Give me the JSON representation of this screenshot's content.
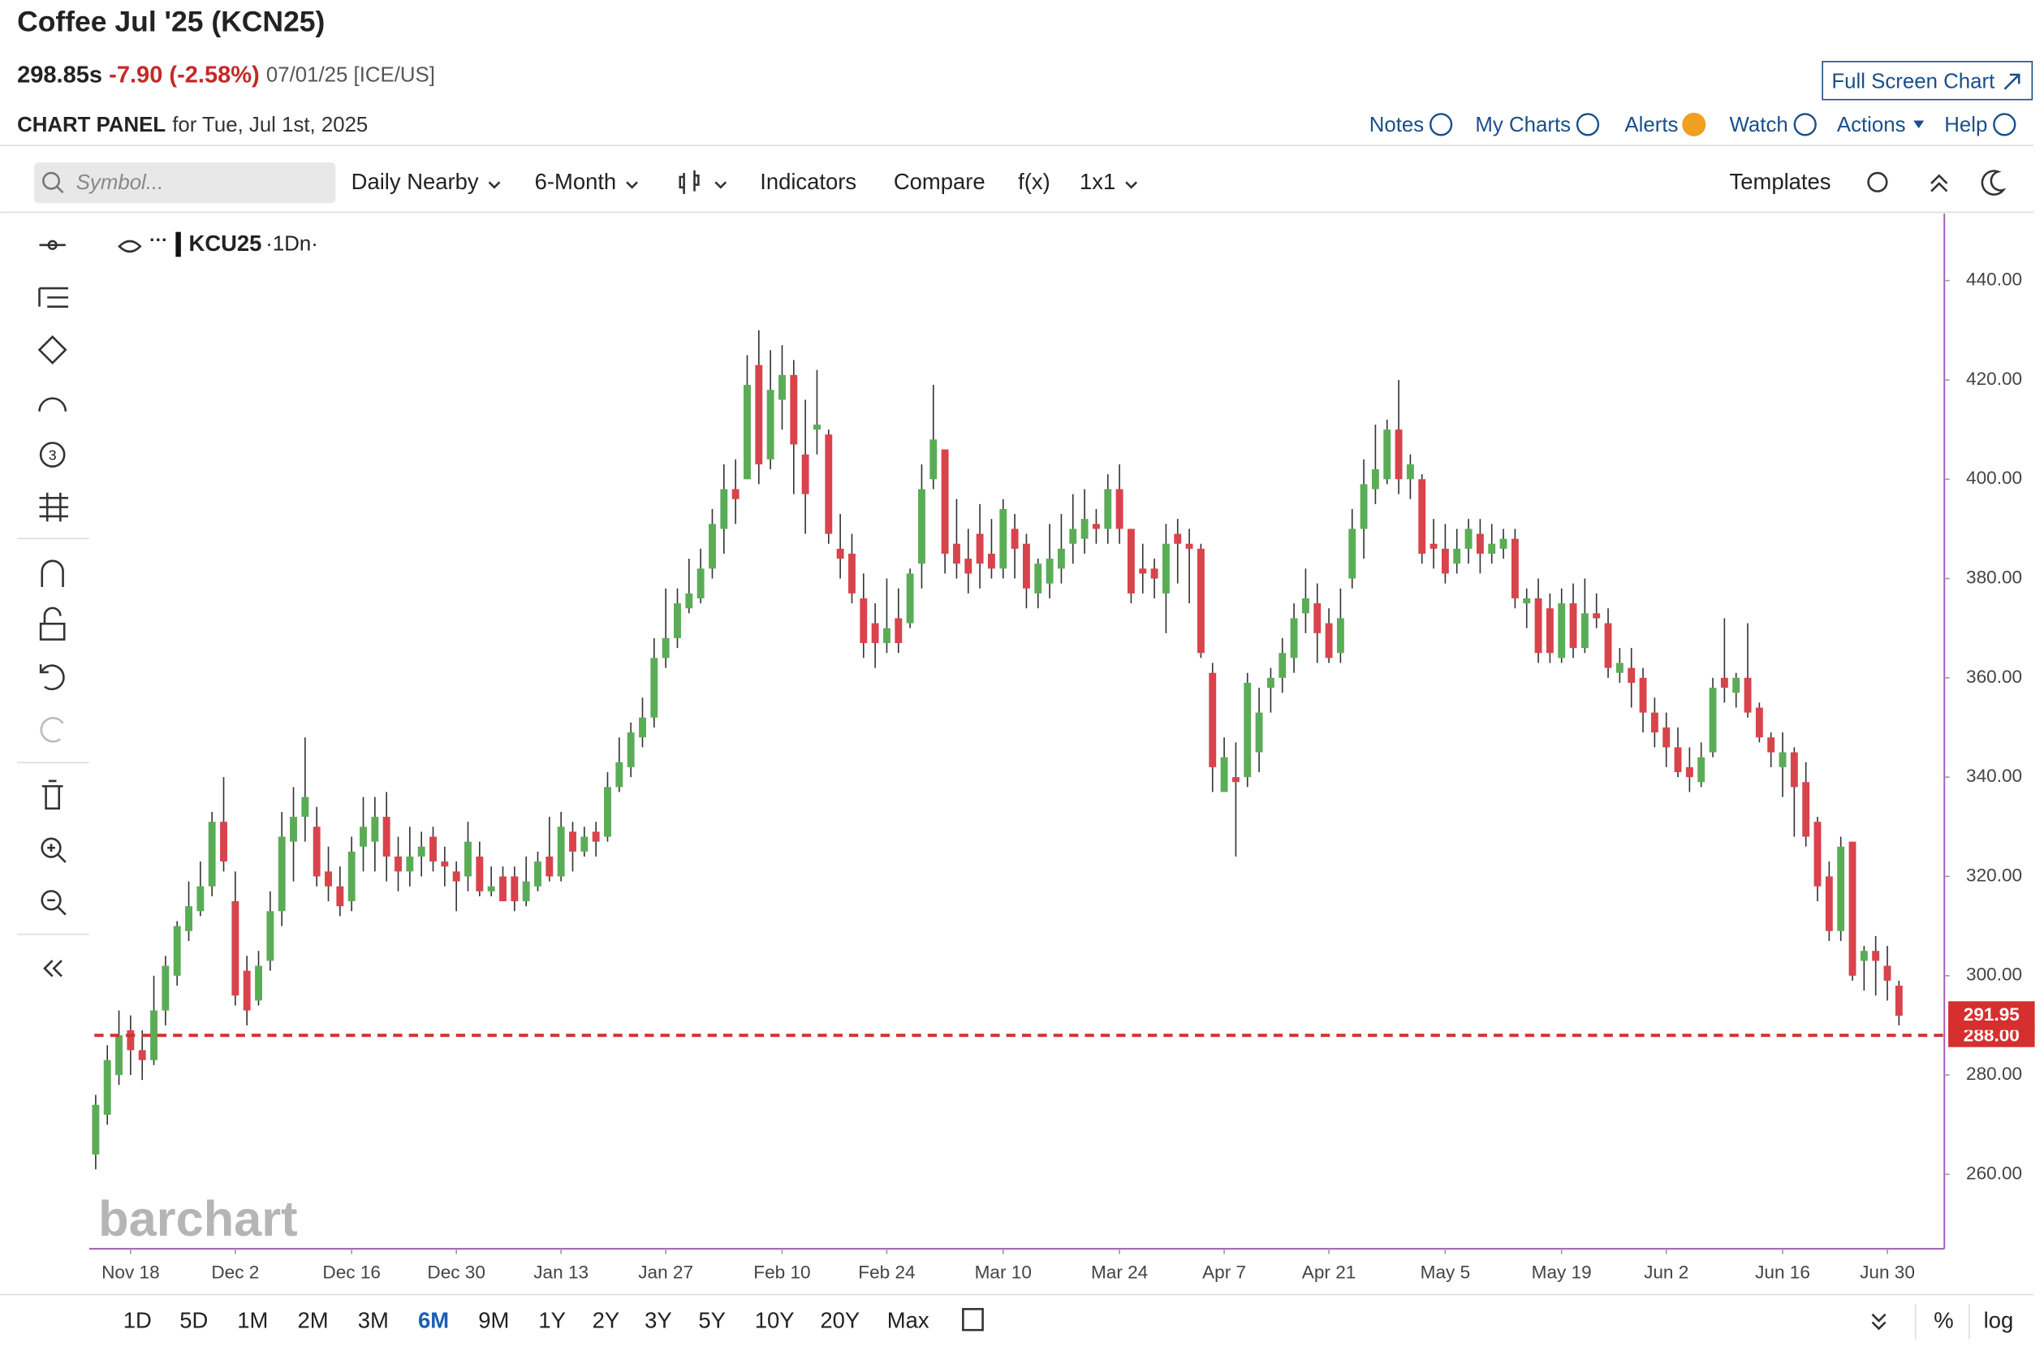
{
  "header": {
    "title": "Coffee Jul '25 (KCN25)",
    "price": "298.85s",
    "change": "-7.90 (-2.58%)",
    "date": "07/01/25 [ICE/US]",
    "panel_label": "CHART PANEL",
    "panel_for": "for Tue, Jul 1st, 2025",
    "full_screen": "Full Screen Chart"
  },
  "menu": [
    "Notes",
    "My Charts",
    "Alerts",
    "Watch",
    "Actions",
    "Help"
  ],
  "toolbar": {
    "symbol_placeholder": "Symbol...",
    "items": [
      "Daily Nearby",
      "6-Month",
      "Indicators",
      "Compare",
      "f(x)",
      "1x1"
    ],
    "templates": "Templates"
  },
  "legend": {
    "symbol": "KCU25",
    "interval": "·1Dn·"
  },
  "watermark": "barchart",
  "periods": [
    "1D",
    "5D",
    "1M",
    "2M",
    "3M",
    "6M",
    "9M",
    "1Y",
    "2Y",
    "3Y",
    "5Y",
    "10Y",
    "20Y",
    "Max"
  ],
  "active_period_index": 5,
  "bottom_right": [
    "%",
    "log"
  ],
  "chart_data": {
    "type": "candlestick",
    "up_color": "#5aad56",
    "down_color": "#d9434b",
    "price_line_color": "#d62f2f",
    "open": [
      264,
      272,
      280,
      289,
      285,
      283,
      293,
      300,
      309,
      313,
      318,
      331,
      315,
      301,
      295,
      303,
      313,
      327,
      332,
      330,
      321,
      318,
      315,
      326,
      327,
      332,
      324,
      321,
      324,
      328,
      323,
      321,
      320,
      324,
      317,
      320,
      320,
      315,
      318,
      324,
      320,
      329,
      325,
      329,
      328,
      338,
      342,
      348,
      352,
      364,
      368,
      374,
      376,
      382,
      390,
      398,
      400,
      423,
      404,
      416,
      421,
      405,
      410,
      409,
      386,
      385,
      376,
      371,
      367,
      372,
      371,
      383,
      400,
      406,
      387,
      384,
      389,
      385,
      382,
      390,
      387,
      377,
      379,
      382,
      387,
      388,
      391,
      390,
      398,
      390,
      382,
      382,
      377,
      389,
      387,
      386,
      361,
      337,
      340,
      340,
      345,
      358,
      360,
      364,
      373,
      375,
      371,
      365,
      380,
      390,
      398,
      400,
      410,
      400,
      400,
      387,
      386,
      383,
      386,
      389,
      385,
      386,
      388,
      375,
      376,
      374,
      364,
      375,
      366,
      373,
      371,
      361,
      362,
      360,
      353,
      350,
      346,
      342,
      339,
      345,
      360,
      357,
      360,
      354,
      348,
      342,
      345,
      339,
      331,
      320,
      309,
      327,
      303,
      305,
      302,
      298
    ],
    "high": [
      276,
      286,
      293,
      292,
      289,
      300,
      304,
      311,
      319,
      323,
      333,
      340,
      321,
      304,
      305,
      317,
      333,
      338,
      348,
      334,
      326,
      322,
      328,
      336,
      336,
      337,
      328,
      330,
      329,
      330,
      326,
      323,
      331,
      327,
      322,
      322,
      322,
      324,
      325,
      332,
      333,
      331,
      330,
      331,
      341,
      348,
      351,
      356,
      368,
      378,
      378,
      384,
      386,
      394,
      403,
      404,
      425,
      430,
      426,
      427,
      424,
      416,
      422,
      410,
      393,
      389,
      381,
      375,
      380,
      378,
      382,
      403,
      419,
      406,
      396,
      390,
      395,
      392,
      396,
      393,
      389,
      384,
      391,
      393,
      397,
      398,
      394,
      401,
      403,
      390,
      387,
      384,
      391,
      392,
      390,
      387,
      363,
      348,
      347,
      361,
      358,
      362,
      368,
      375,
      382,
      379,
      374,
      378,
      394,
      404,
      411,
      412,
      420,
      405,
      401,
      392,
      391,
      390,
      392,
      392,
      391,
      390,
      390,
      378,
      380,
      377,
      378,
      379,
      380,
      377,
      374,
      366,
      366,
      362,
      356,
      353,
      350,
      346,
      347,
      360,
      372,
      361,
      371,
      355,
      349,
      349,
      346,
      343,
      332,
      323,
      328,
      327,
      306,
      308,
      306,
      299
    ],
    "low": [
      261,
      270,
      278,
      280,
      279,
      282,
      290,
      298,
      307,
      312,
      316,
      321,
      294,
      290,
      294,
      301,
      310,
      319,
      327,
      318,
      315,
      312,
      313,
      321,
      321,
      319,
      317,
      318,
      320,
      321,
      318,
      313,
      317,
      316,
      316,
      315,
      313,
      314,
      317,
      319,
      319,
      321,
      324,
      324,
      327,
      337,
      340,
      346,
      350,
      362,
      366,
      373,
      375,
      380,
      385,
      391,
      400,
      399,
      402,
      410,
      397,
      389,
      405,
      387,
      380,
      375,
      364,
      362,
      365,
      365,
      370,
      378,
      398,
      381,
      380,
      377,
      378,
      380,
      380,
      380,
      374,
      374,
      376,
      379,
      383,
      385,
      387,
      387,
      387,
      375,
      377,
      376,
      369,
      379,
      375,
      364,
      337,
      337,
      324,
      338,
      341,
      353,
      357,
      361,
      369,
      363,
      363,
      363,
      378,
      384,
      395,
      399,
      397,
      396,
      383,
      382,
      379,
      381,
      383,
      381,
      383,
      384,
      374,
      370,
      363,
      363,
      363,
      364,
      365,
      370,
      360,
      359,
      354,
      349,
      346,
      342,
      340,
      337,
      338,
      344,
      355,
      354,
      352,
      347,
      342,
      336,
      328,
      326,
      315,
      307,
      307,
      299,
      297,
      296,
      295,
      290
    ],
    "close": [
      274,
      283,
      288,
      285,
      283,
      293,
      302,
      310,
      314,
      318,
      331,
      323,
      296,
      293,
      302,
      313,
      328,
      332,
      336,
      320,
      318,
      314,
      325,
      330,
      332,
      324,
      321,
      324,
      326,
      323,
      322,
      319,
      327,
      317,
      318,
      315,
      315,
      319,
      323,
      320,
      330,
      325,
      328,
      327,
      338,
      343,
      349,
      352,
      364,
      368,
      375,
      377,
      382,
      391,
      398,
      396,
      419,
      403,
      418,
      421,
      407,
      397,
      411,
      389,
      384,
      377,
      367,
      367,
      370,
      367,
      381,
      398,
      408,
      385,
      383,
      381,
      383,
      382,
      394,
      386,
      378,
      383,
      384,
      386,
      390,
      392,
      390,
      398,
      390,
      377,
      381,
      380,
      387,
      387,
      386,
      365,
      342,
      344,
      339,
      359,
      353,
      360,
      365,
      372,
      376,
      369,
      364,
      372,
      390,
      399,
      402,
      410,
      400,
      403,
      385,
      386,
      381,
      386,
      390,
      385,
      387,
      388,
      376,
      376,
      365,
      365,
      375,
      366,
      373,
      372,
      362,
      363,
      359,
      353,
      349,
      346,
      341,
      340,
      344,
      358,
      358,
      360,
      353,
      348,
      345,
      345,
      338,
      328,
      318,
      309,
      326,
      300,
      305,
      303,
      299,
      291.95
    ],
    "xlim": [
      -0.56,
      158.9
    ],
    "xticks": [
      {
        "value": 3,
        "label": "Nov 18"
      },
      {
        "value": 12,
        "label": "Dec 2"
      },
      {
        "value": 22,
        "label": "Dec 16"
      },
      {
        "value": 31,
        "label": "Dec 30"
      },
      {
        "value": 40,
        "label": "Jan 13"
      },
      {
        "value": 49,
        "label": "Jan 27"
      },
      {
        "value": 59,
        "label": "Feb 10"
      },
      {
        "value": 68,
        "label": "Feb 24"
      },
      {
        "value": 78,
        "label": "Mar 10"
      },
      {
        "value": 88,
        "label": "Mar 24"
      },
      {
        "value": 97,
        "label": "Apr 7"
      },
      {
        "value": 106,
        "label": "Apr 21"
      },
      {
        "value": 116,
        "label": "May 5"
      },
      {
        "value": 126,
        "label": "May 19"
      },
      {
        "value": 135,
        "label": "Jun 2"
      },
      {
        "value": 145,
        "label": "Jun 16"
      },
      {
        "value": 154,
        "label": "Jun 30"
      }
    ],
    "ylim": [
      245,
      453.5
    ],
    "yticks": [
      {
        "value": 260,
        "label": "260.00"
      },
      {
        "value": 280,
        "label": "280.00"
      },
      {
        "value": 300,
        "label": "300.00"
      },
      {
        "value": 320,
        "label": "320.00"
      },
      {
        "value": 340,
        "label": "340.00"
      },
      {
        "value": 360,
        "label": "360.00"
      },
      {
        "value": 380,
        "label": "380.00"
      },
      {
        "value": 400,
        "label": "400.00"
      },
      {
        "value": 420,
        "label": "420.00"
      },
      {
        "value": 440,
        "label": "440.00"
      }
    ],
    "price_line": {
      "value": 288,
      "label": "288.00"
    }
  }
}
